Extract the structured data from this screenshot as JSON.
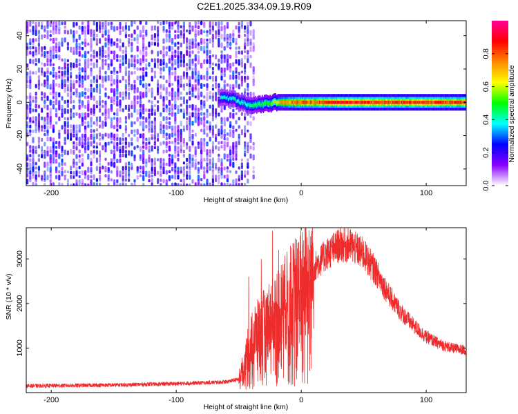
{
  "title": "C2E1.2025.334.09.19.R09",
  "chart_data": [
    {
      "type": "heatmap",
      "xlabel": "Height of straight line (km)",
      "ylabel": "Frequency (Hz)",
      "xlim": [
        -220,
        132
      ],
      "ylim": [
        -50,
        49
      ],
      "x_ticks": [
        -200,
        -100,
        0,
        100
      ],
      "y_ticks": [
        -40,
        -20,
        0,
        20,
        40
      ],
      "colorbar": {
        "label": "Normalized spectral amplitude",
        "range": [
          0,
          1
        ],
        "ticks": [
          0.0,
          0.2,
          0.4,
          0.6,
          0.8
        ],
        "colormap": [
          "#ffffff",
          "#8800ff",
          "#0000ff",
          "#00ffff",
          "#00ff00",
          "#ffff00",
          "#ff8800",
          "#ff0000",
          "#ff0099"
        ]
      },
      "noise_region": {
        "x": [
          -220,
          -45
        ],
        "amplitude": [
          0.08,
          0.3
        ]
      },
      "signal_line": {
        "x_start": -65,
        "x_end": 132,
        "center_frequency": [
          [
            -65,
            3
          ],
          [
            -55,
            2
          ],
          [
            -48,
            0
          ],
          [
            -40,
            -2
          ],
          [
            -30,
            -1
          ],
          [
            -20,
            0
          ],
          [
            0,
            0
          ],
          [
            50,
            0
          ],
          [
            100,
            0
          ],
          [
            132,
            0
          ]
        ],
        "peak_amplitude": [
          [
            -65,
            0.4
          ],
          [
            -45,
            0.45
          ],
          [
            -25,
            0.55
          ],
          [
            -15,
            0.8
          ],
          [
            0,
            0.85
          ],
          [
            10,
            0.85
          ],
          [
            30,
            0.95
          ],
          [
            60,
            0.9
          ],
          [
            100,
            0.9
          ],
          [
            132,
            0.9
          ]
        ]
      }
    },
    {
      "type": "line",
      "xlabel": "Height of straight line (km)",
      "ylabel": "SNR (10 * v/v)",
      "xlim": [
        -220,
        132
      ],
      "ylim": [
        0,
        3700
      ],
      "x_ticks": [
        -200,
        -100,
        0,
        100
      ],
      "y_ticks": [
        1000,
        2000,
        3000
      ],
      "series": [
        {
          "color": "#ee2c2c",
          "envelope": [
            [
              -220,
              150
            ],
            [
              -150,
              170
            ],
            [
              -100,
              200
            ],
            [
              -60,
              240
            ],
            [
              -50,
              300
            ],
            [
              -45,
              700
            ],
            [
              -40,
              1200
            ],
            [
              -30,
              1500
            ],
            [
              -20,
              1800
            ],
            [
              -10,
              2100
            ],
            [
              0,
              2400
            ],
            [
              10,
              2800
            ],
            [
              20,
              3100
            ],
            [
              30,
              3300
            ],
            [
              40,
              3300
            ],
            [
              50,
              3100
            ],
            [
              60,
              2700
            ],
            [
              70,
              2200
            ],
            [
              80,
              1800
            ],
            [
              90,
              1500
            ],
            [
              100,
              1250
            ],
            [
              110,
              1100
            ],
            [
              120,
              1000
            ],
            [
              132,
              950
            ]
          ],
          "spikes": [
            [
              -42,
              2600
            ],
            [
              -32,
              3000
            ],
            [
              -23,
              3630
            ],
            [
              -18,
              3200
            ],
            [
              -14,
              2500
            ]
          ]
        }
      ]
    }
  ]
}
